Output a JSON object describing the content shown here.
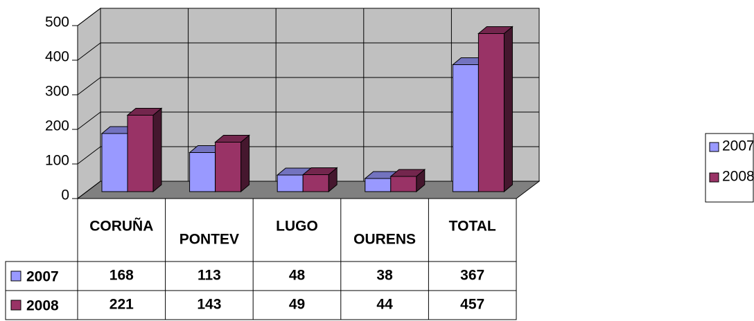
{
  "chart_data": {
    "type": "bar3d",
    "categories": [
      "CORUÑA",
      "PONTEV",
      "LUGO",
      "OURENS",
      "TOTAL"
    ],
    "series": [
      {
        "name": "2007",
        "color": "#9999ff",
        "values": [
          168,
          113,
          48,
          38,
          367
        ]
      },
      {
        "name": "2008",
        "color": "#993366",
        "values": [
          221,
          143,
          49,
          44,
          457
        ]
      }
    ],
    "ylim": [
      0,
      500
    ],
    "yticks": [
      0,
      100,
      200,
      300,
      400,
      500
    ],
    "grid": true,
    "legend": "right",
    "data_table": true
  }
}
